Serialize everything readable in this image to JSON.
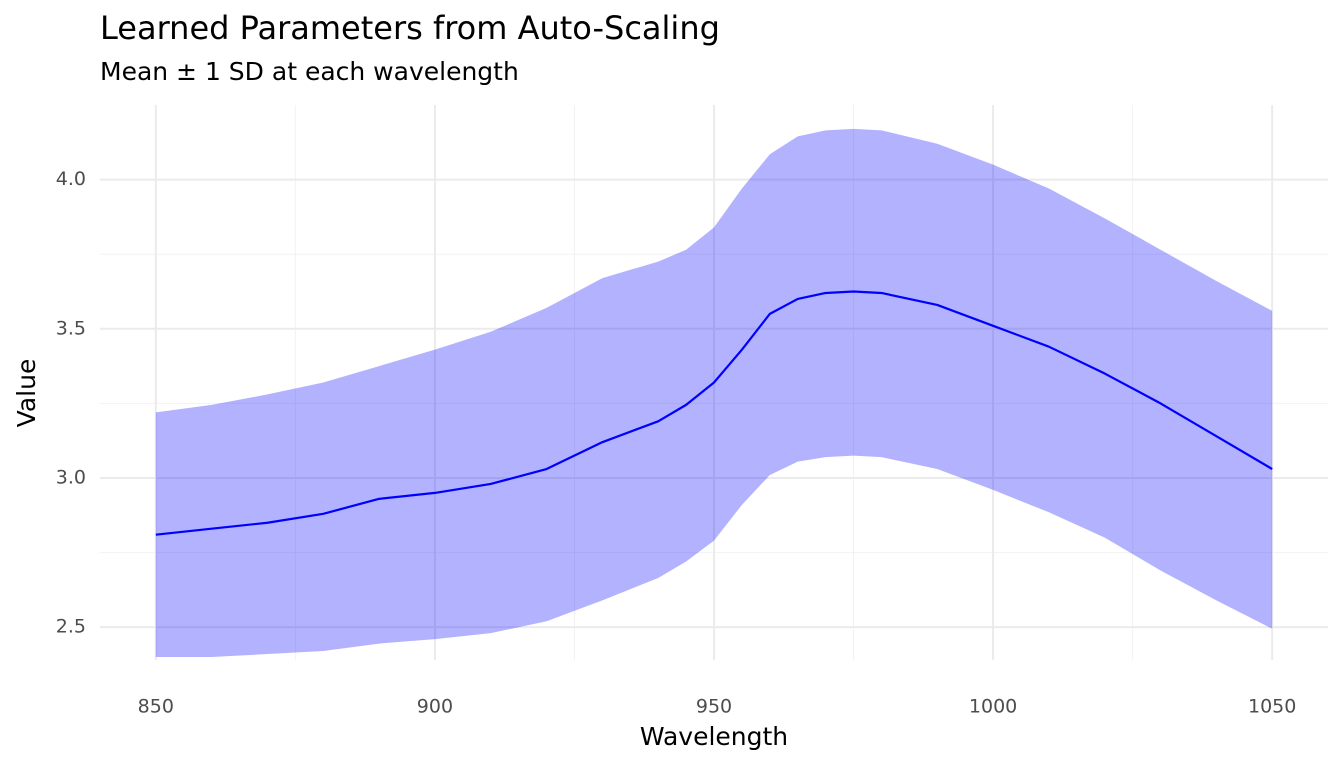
{
  "chart_data": {
    "type": "line",
    "title": "Learned Parameters from Auto-Scaling",
    "subtitle": "Mean ± 1 SD at each wavelength",
    "x_label": "Wavelength",
    "y_label": "Value",
    "x": [
      850,
      860,
      870,
      880,
      890,
      900,
      910,
      920,
      930,
      940,
      945,
      950,
      955,
      960,
      965,
      970,
      975,
      980,
      990,
      1000,
      1010,
      1020,
      1030,
      1040,
      1050
    ],
    "values": [
      2.81,
      2.83,
      2.85,
      2.88,
      2.93,
      2.95,
      2.98,
      3.03,
      3.12,
      3.19,
      3.245,
      3.32,
      3.43,
      3.55,
      3.6,
      3.62,
      3.625,
      3.62,
      3.58,
      3.51,
      3.44,
      3.35,
      3.25,
      3.14,
      3.03
    ],
    "upper": [
      3.22,
      3.245,
      3.28,
      3.32,
      3.375,
      3.43,
      3.49,
      3.57,
      3.67,
      3.725,
      3.765,
      3.84,
      3.97,
      4.085,
      4.145,
      4.165,
      4.17,
      4.165,
      4.12,
      4.05,
      3.97,
      3.87,
      3.765,
      3.66,
      3.56
    ],
    "lower": [
      2.4,
      2.4,
      2.41,
      2.42,
      2.445,
      2.46,
      2.48,
      2.52,
      2.59,
      2.665,
      2.72,
      2.79,
      2.91,
      3.01,
      3.055,
      3.07,
      3.075,
      3.07,
      3.03,
      2.96,
      2.885,
      2.8,
      2.69,
      2.59,
      2.495
    ],
    "color": "#0000ff",
    "band_color": "#0000ff",
    "band_opacity": 0.3,
    "xlim": [
      840,
      1060
    ],
    "ylim": [
      2.39,
      4.25
    ],
    "xticks": [
      850,
      900,
      950,
      1000,
      1050
    ],
    "yticks": [
      2.5,
      {
        "value": 3,
        "label": "3.0"
      },
      3.5,
      {
        "value": 4,
        "label": "4.0"
      }
    ],
    "x_minor_grid": [
      875,
      925,
      975,
      1025
    ],
    "y_minor_grid": [
      2.75,
      3.25,
      3.75
    ],
    "grid": true
  }
}
